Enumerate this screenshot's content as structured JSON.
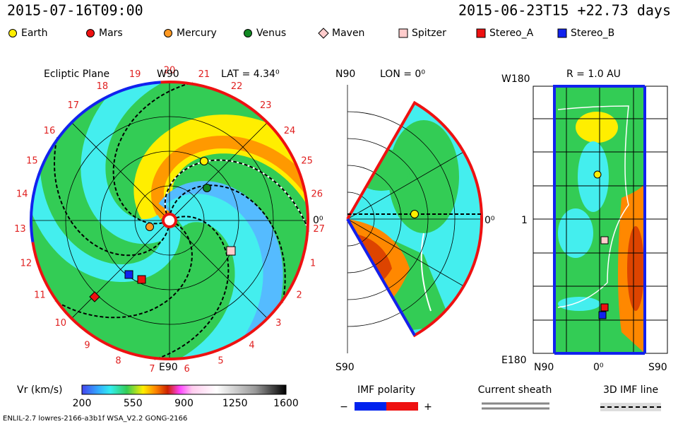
{
  "header": {
    "time": "2015-07-16T09:00",
    "run": "2015-06-23T15 +22.73 days"
  },
  "legend": [
    {
      "label": "Earth",
      "color": "#ffee00",
      "shape": "circle"
    },
    {
      "label": "Mars",
      "color": "#ee1111",
      "shape": "circle"
    },
    {
      "label": "Mercury",
      "color": "#ff9922",
      "shape": "circle"
    },
    {
      "label": "Venus",
      "color": "#118822",
      "shape": "circle"
    },
    {
      "label": "Maven",
      "color": "#ffcccc",
      "shape": "diamond"
    },
    {
      "label": "Spitzer",
      "color": "#ffcccc",
      "shape": "square"
    },
    {
      "label": "Stereo_A",
      "color": "#ee1111",
      "shape": "square"
    },
    {
      "label": "Stereo_B",
      "color": "#1122ee",
      "shape": "square"
    }
  ],
  "ecliptic": {
    "title": "Ecliptic Plane",
    "top": "W90",
    "lat": "LAT = 4.34⁰",
    "right": "0⁰",
    "bottom": "E90",
    "longitudes": [
      "20",
      "21",
      "22",
      "23",
      "24",
      "25",
      "26",
      "27",
      "1",
      "2",
      "3",
      "4",
      "5",
      "6",
      "7",
      "8",
      "9",
      "10",
      "11",
      "12",
      "13",
      "14",
      "15",
      "16",
      "17",
      "18",
      "19"
    ]
  },
  "meridional": {
    "top": "N90",
    "lon": "LON = 0⁰",
    "right": "0⁰",
    "bottom": "S90"
  },
  "radial": {
    "title": "R = 1.0 AU",
    "top": "W180",
    "middle": "1",
    "bottom": "E180",
    "x_left": "N90",
    "x_mid": "0⁰",
    "x_right": "S90"
  },
  "colorbar": {
    "label": "Vr (km/s)",
    "ticks": [
      "200",
      "550",
      "900",
      "1250",
      "1600"
    ]
  },
  "keys": {
    "polarity": "IMF polarity",
    "minus": "−",
    "plus": "+",
    "sheath": "Current sheath",
    "line": "3D IMF line"
  },
  "footer": "ENLIL-2.7 lowres-2166-a3b1f WSA_V2.2 GONG-2166"
}
